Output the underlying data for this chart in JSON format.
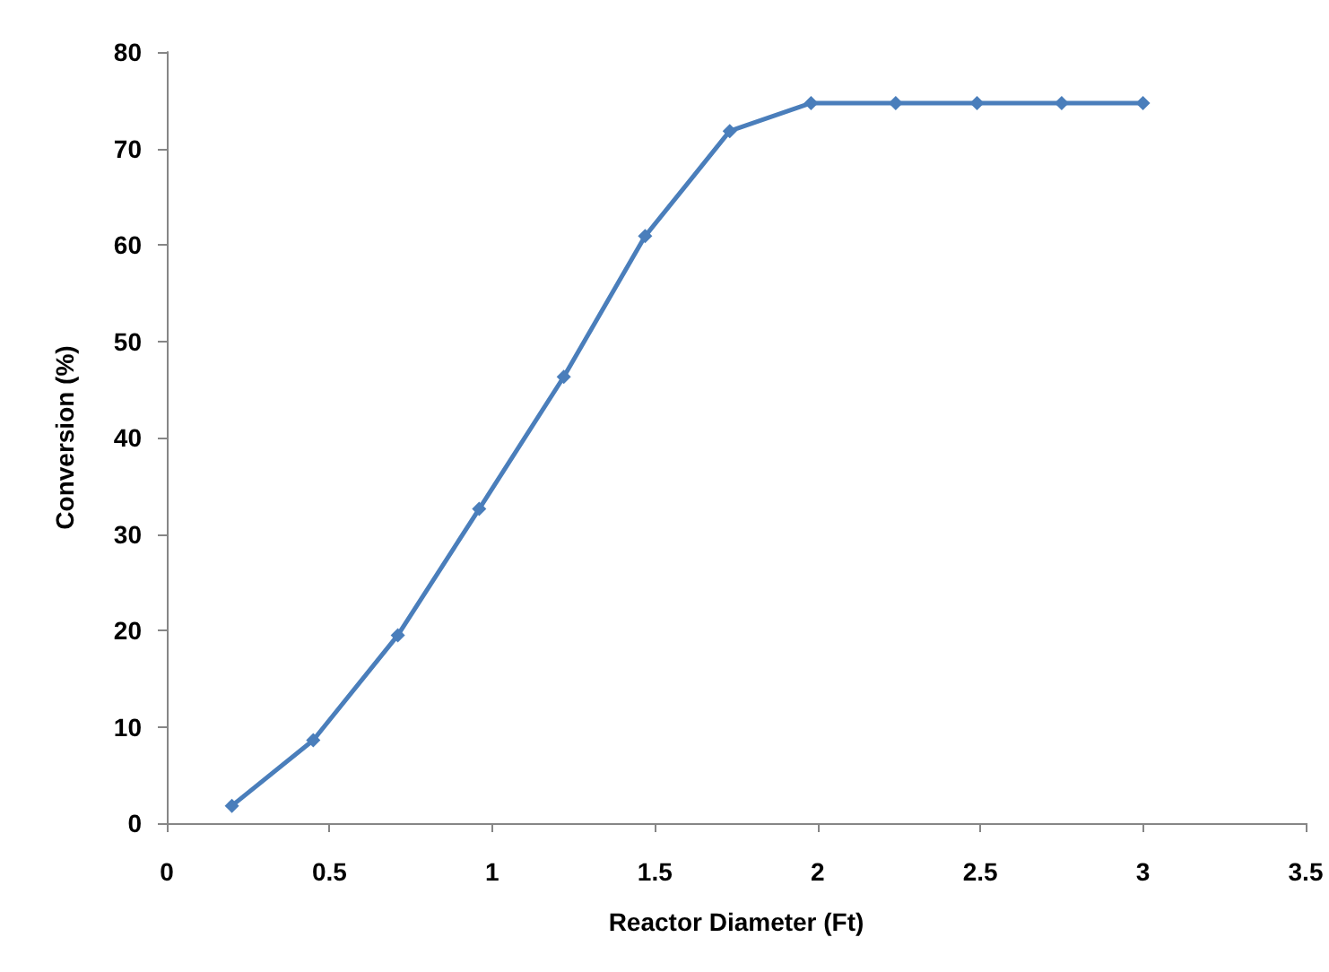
{
  "chart_data": {
    "type": "line",
    "xlabel": "Reactor Diameter (Ft)",
    "ylabel": "Conversion (%)",
    "x": [
      0.2,
      0.45,
      0.71,
      0.96,
      1.22,
      1.47,
      1.73,
      1.98,
      2.24,
      2.49,
      2.75,
      3.0
    ],
    "series": [
      {
        "color": "#4a7ebb",
        "values": [
          1.8,
          8.6,
          19.5,
          32.6,
          46.3,
          60.9,
          71.8,
          74.7,
          74.7,
          74.7,
          74.7,
          74.7
        ]
      }
    ],
    "xlim": [
      0,
      3.5
    ],
    "xticks": [
      0,
      0.5,
      1,
      1.5,
      2,
      2.5,
      3,
      3.5
    ],
    "ylim": [
      0,
      80
    ],
    "yticks": [
      0,
      10,
      20,
      30,
      40,
      50,
      60,
      70,
      80
    ],
    "marker": "diamond",
    "line_style": "solid",
    "grid": false
  }
}
